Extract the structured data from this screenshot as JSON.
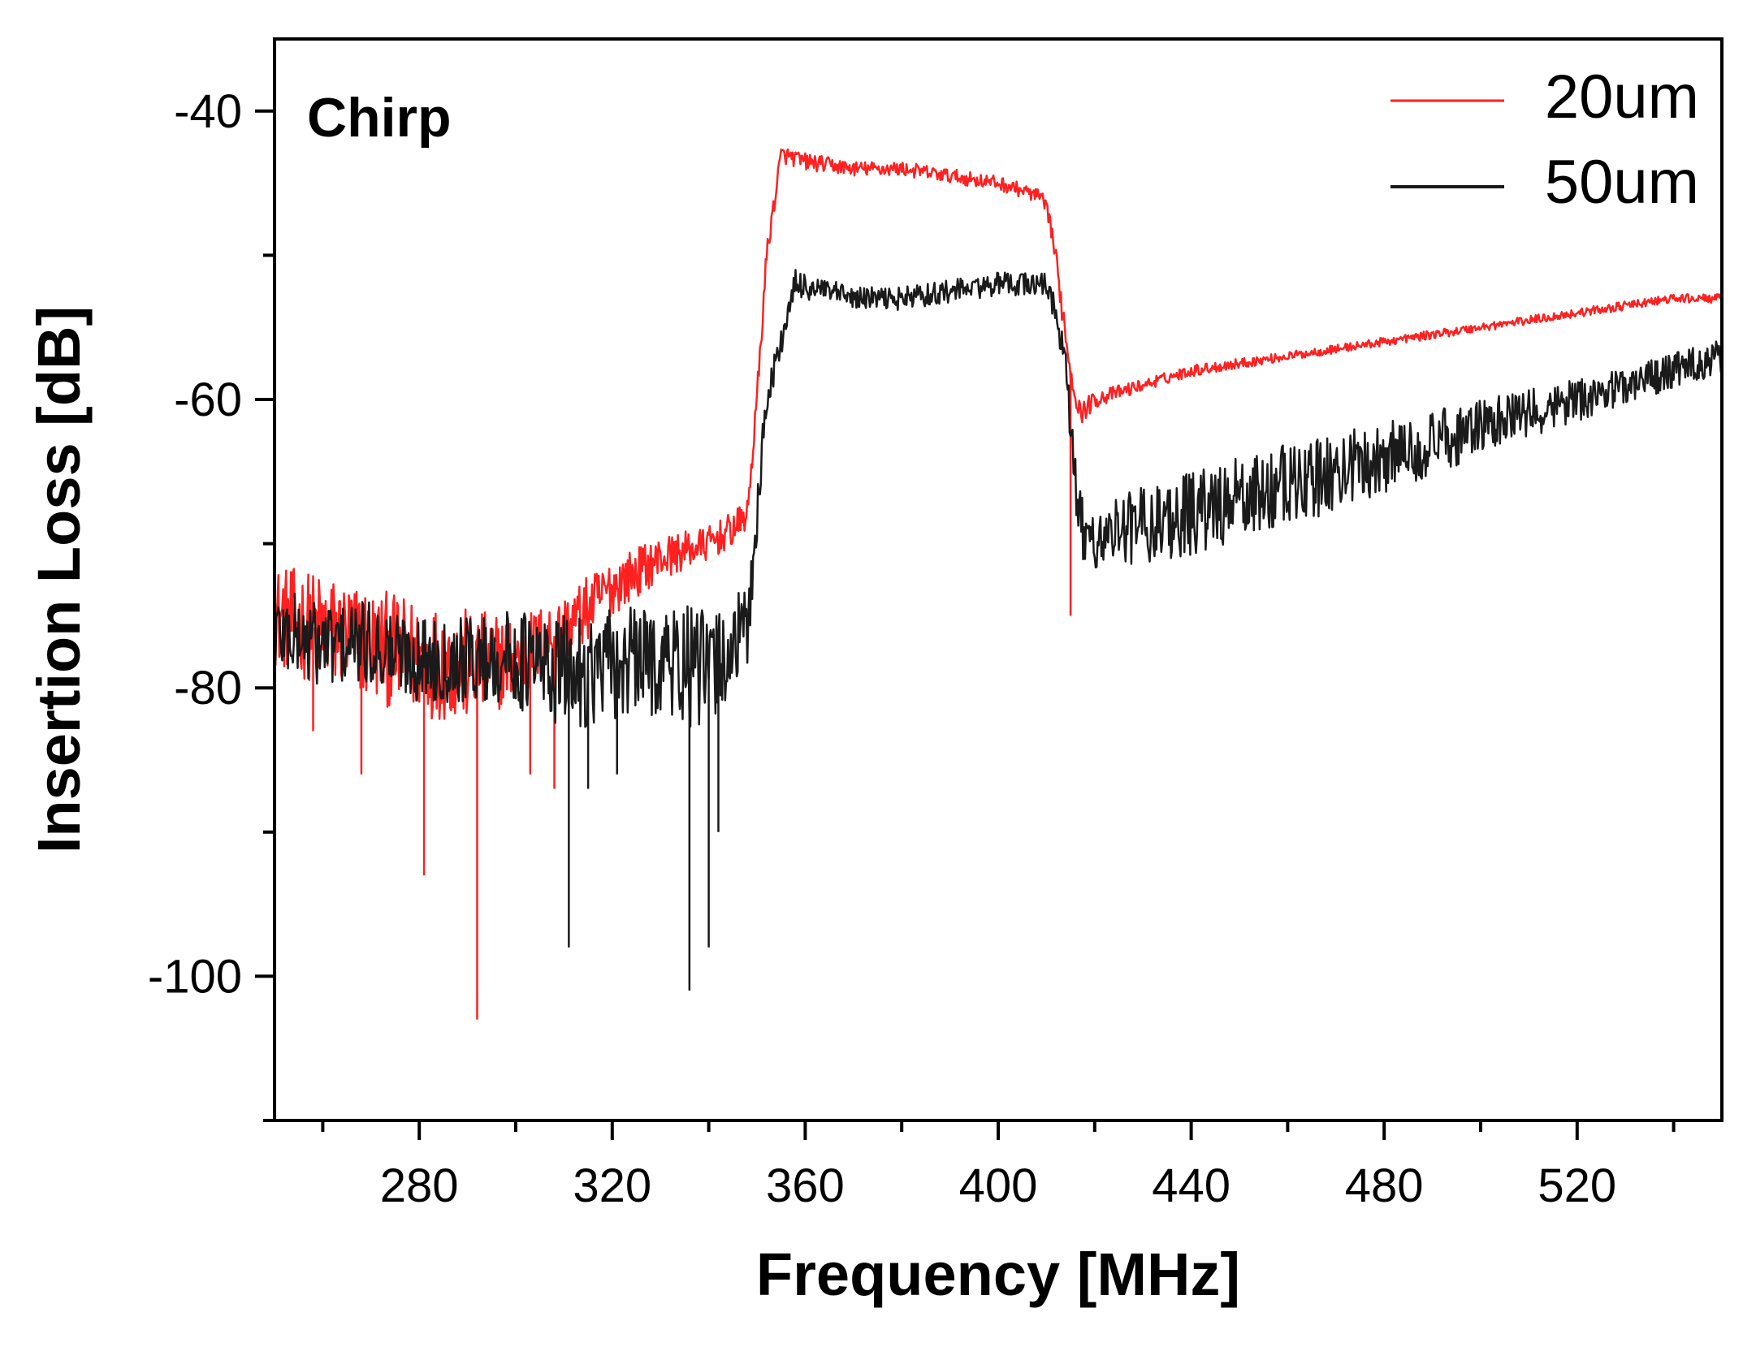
{
  "chart_data": {
    "type": "line",
    "title": "",
    "xlabel": "Frequency [MHz]",
    "ylabel": "Insertion Loss [dB]",
    "annotation": "Chirp",
    "xlim": [
      250,
      550
    ],
    "ylim": [
      -110,
      -35
    ],
    "x_ticks": [
      280,
      320,
      360,
      400,
      440,
      480,
      520
    ],
    "x_tick_labels": [
      "280",
      "320",
      "360",
      "400",
      "440",
      "480",
      "520"
    ],
    "x_minor_ticks": [
      260,
      300,
      340,
      380,
      420,
      460,
      500,
      540
    ],
    "y_ticks": [
      -40,
      -60,
      -80,
      -100
    ],
    "y_tick_labels": [
      "-40",
      "-60",
      "-80",
      "-100"
    ],
    "y_minor_ticks": [
      -50,
      -70,
      -90,
      -110
    ],
    "grid": false,
    "legend_position": "top-right",
    "series": [
      {
        "name": "20um",
        "color": "#ff2020",
        "x": [
          250,
          260,
          270,
          280,
          290,
          300,
          310,
          320,
          330,
          340,
          345,
          348,
          350,
          352,
          355,
          360,
          370,
          380,
          390,
          400,
          405,
          409,
          411,
          413,
          415,
          417,
          420,
          430,
          440,
          460,
          480,
          500,
          520,
          540,
          550
        ],
        "values": [
          -75,
          -76,
          -77,
          -78,
          -78.5,
          -78,
          -76,
          -73,
          -71,
          -70,
          -69,
          -68,
          -60,
          -50,
          -43,
          -43.5,
          -44,
          -44,
          -44.5,
          -45,
          -45.5,
          -46,
          -48,
          -53,
          -58,
          -61,
          -60,
          -59,
          -58,
          -57,
          -56,
          -55,
          -54,
          -53,
          -53
        ],
        "noise_amplitude": [
          3.5,
          4,
          4,
          4,
          4,
          3,
          2.5,
          2,
          1.5,
          1.2,
          1.2,
          1,
          1,
          0.8,
          0.6,
          0.6,
          0.5,
          0.5,
          0.5,
          0.5,
          0.5,
          0.5,
          0.8,
          1,
          1,
          0.8,
          0.6,
          0.4,
          0.4,
          0.3,
          0.3,
          0.3,
          0.3,
          0.3,
          0.3
        ],
        "spikes": [
          {
            "x": 258,
            "y": -83
          },
          {
            "x": 268,
            "y": -86
          },
          {
            "x": 281,
            "y": -93
          },
          {
            "x": 292,
            "y": -103
          },
          {
            "x": 303,
            "y": -86
          },
          {
            "x": 308,
            "y": -87
          },
          {
            "x": 415,
            "y": -75
          }
        ]
      },
      {
        "name": "50um",
        "color": "#1a1a1a",
        "x": [
          250,
          260,
          270,
          280,
          290,
          300,
          310,
          320,
          330,
          340,
          348,
          350,
          352,
          355,
          358,
          370,
          380,
          390,
          400,
          405,
          410,
          412,
          414,
          416,
          418,
          425,
          440,
          460,
          480,
          500,
          520,
          540,
          550
        ],
        "values": [
          -76,
          -77,
          -77,
          -78,
          -78,
          -78,
          -79,
          -78.5,
          -78,
          -79,
          -76,
          -68,
          -60,
          -56,
          -52,
          -53,
          -53,
          -52.5,
          -52,
          -52,
          -52,
          -54,
          -58,
          -66,
          -70,
          -69,
          -68,
          -66,
          -64,
          -62,
          -60,
          -58,
          -57
        ],
        "noise_amplitude": [
          3,
          3,
          3,
          3,
          3,
          3.5,
          4,
          4,
          4,
          4.5,
          3,
          2,
          1.5,
          1,
          1,
          0.8,
          0.8,
          0.8,
          0.8,
          0.8,
          0.8,
          1,
          1.5,
          2,
          2,
          2.5,
          3,
          3,
          2.5,
          2,
          1.5,
          1.2,
          1.2
        ],
        "spikes": [
          {
            "x": 311,
            "y": -98
          },
          {
            "x": 315,
            "y": -87
          },
          {
            "x": 321,
            "y": -86
          },
          {
            "x": 336,
            "y": -101
          },
          {
            "x": 340,
            "y": -98
          },
          {
            "x": 342,
            "y": -90
          }
        ]
      }
    ]
  }
}
